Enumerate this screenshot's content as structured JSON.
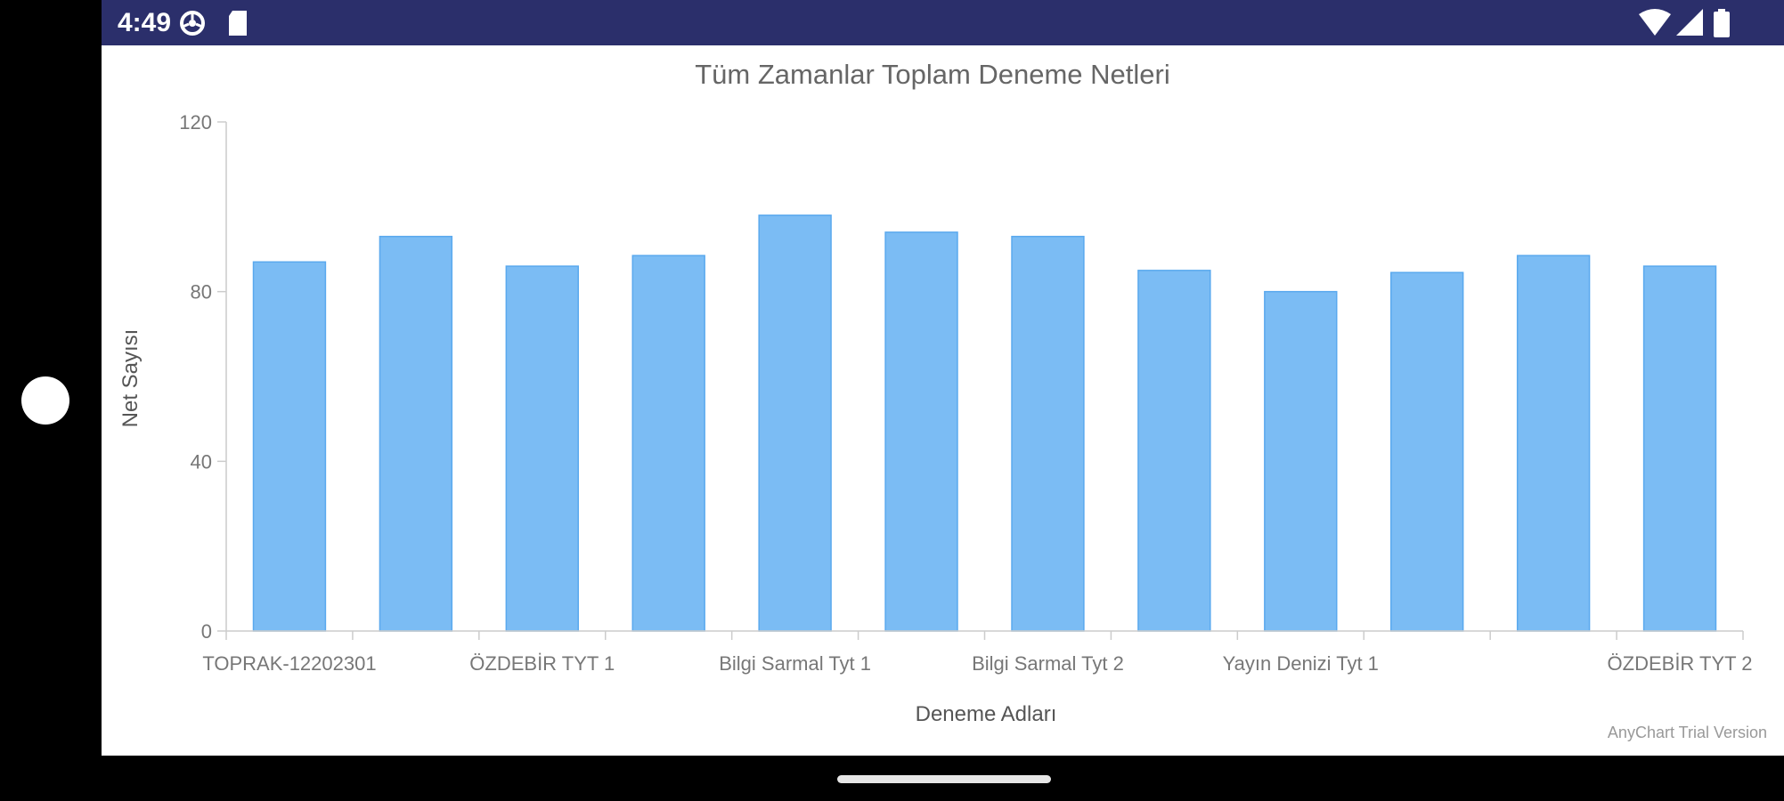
{
  "status_bar": {
    "time": "4:49",
    "left_icons": [
      "settings-gear-icon",
      "sd-card-icon"
    ],
    "right_icons": [
      "wifi-icon",
      "signal-icon",
      "battery-icon"
    ],
    "background": "#2b2f6b"
  },
  "chart_data": {
    "type": "bar",
    "title": "Tüm Zamanlar Toplam Deneme Netleri",
    "xlabel": "Deneme Adları",
    "ylabel": "Net Sayısı",
    "ylim": [
      0,
      120
    ],
    "yticks": [
      0,
      40,
      80,
      120
    ],
    "categories": [
      "TOPRAK-12202301",
      "",
      "ÖZDEBİR TYT 1",
      "",
      "Bilgi Sarmal Tyt 1",
      "",
      "Bilgi Sarmal Tyt 2",
      "",
      "Yayın Denizi Tyt 1",
      "",
      "",
      "ÖZDEBİR TYT 2"
    ],
    "values": [
      87,
      93,
      86,
      88.5,
      98,
      94,
      93,
      85,
      80,
      84.5,
      88.5,
      86
    ],
    "bar_color": "#7bbcf4",
    "grid": false,
    "legend": "none",
    "credit": "AnyChart Trial Version"
  }
}
